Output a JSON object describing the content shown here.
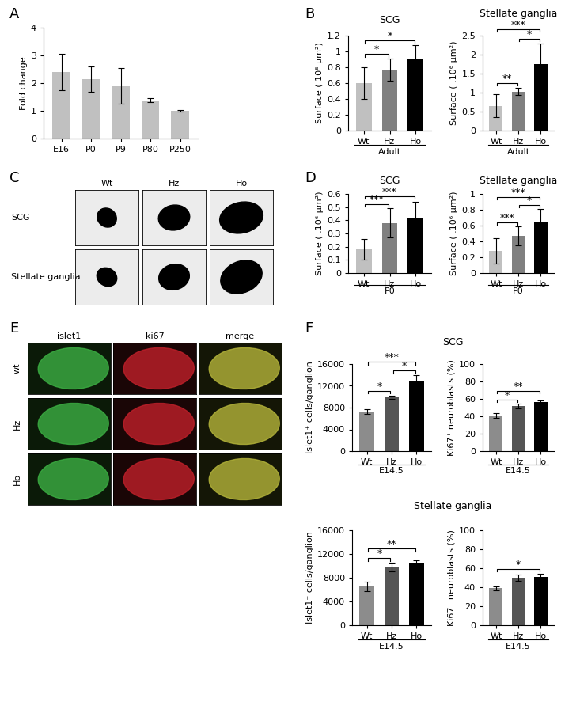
{
  "panel_labels": [
    "A",
    "B",
    "C",
    "D",
    "E",
    "F"
  ],
  "chart_data": [
    {
      "type": "bar",
      "ylabel": "Fold change",
      "categories": [
        "E16",
        "P0",
        "P9",
        "P80",
        "P250"
      ],
      "values": [
        2.4,
        2.15,
        1.9,
        1.38,
        1.0
      ],
      "errors": [
        0.65,
        0.45,
        0.65,
        0.07,
        0.04
      ],
      "color": "#c0c0c0",
      "ylim": [
        0,
        4
      ],
      "yticks": [
        0,
        1,
        2,
        3,
        4
      ]
    },
    {
      "type": "bar",
      "title": "SCG",
      "xlabel": "Adult",
      "ylabel": "Surface ( 10⁶ µm²)",
      "categories": [
        "Wt",
        "Hz",
        "Ho"
      ],
      "values": [
        0.6,
        0.77,
        0.91
      ],
      "errors": [
        0.2,
        0.14,
        0.17
      ],
      "colors": [
        "#c0c0c0",
        "#808080",
        "#000000"
      ],
      "ylim": [
        0,
        1.2
      ],
      "yticks": [
        0,
        0.2,
        0.4,
        0.6,
        0.8,
        1,
        1.2
      ],
      "significance": [
        {
          "pair": [
            0,
            1
          ],
          "text": "*"
        },
        {
          "pair": [
            0,
            2
          ],
          "text": "*"
        }
      ]
    },
    {
      "type": "bar",
      "title": "Stellate ganglia",
      "xlabel": "Adult",
      "ylabel": "Surface ( .10⁶ µm²)",
      "categories": [
        "Wt",
        "Hz",
        "Ho"
      ],
      "values": [
        0.65,
        1.03,
        1.75
      ],
      "errors": [
        0.3,
        0.1,
        0.55
      ],
      "colors": [
        "#c0c0c0",
        "#808080",
        "#000000"
      ],
      "ylim": [
        0,
        2.5
      ],
      "yticks": [
        0,
        0.5,
        1,
        1.5,
        2,
        2.5
      ],
      "significance": [
        {
          "pair": [
            0,
            1
          ],
          "text": "**"
        },
        {
          "pair": [
            1,
            2
          ],
          "text": "*"
        },
        {
          "pair": [
            0,
            2
          ],
          "text": "***"
        }
      ]
    },
    {
      "type": "bar",
      "title": "SCG",
      "xlabel": "P0",
      "ylabel": "Surface ( .10⁶ µm²)",
      "categories": [
        "Wt",
        "Hz",
        "Ho"
      ],
      "values": [
        0.18,
        0.38,
        0.42
      ],
      "errors": [
        0.08,
        0.11,
        0.12
      ],
      "colors": [
        "#c0c0c0",
        "#808080",
        "#000000"
      ],
      "ylim": [
        0,
        0.6
      ],
      "yticks": [
        0,
        0.1,
        0.2,
        0.3,
        0.4,
        0.5,
        0.6
      ],
      "significance": [
        {
          "pair": [
            0,
            1
          ],
          "text": "***"
        },
        {
          "pair": [
            0,
            2
          ],
          "text": "***"
        }
      ]
    },
    {
      "type": "bar",
      "title": "Stellate ganglia",
      "xlabel": "P0",
      "ylabel": "Surface ( .10⁶ µm²)",
      "categories": [
        "Wt",
        "Hz",
        "Ho"
      ],
      "values": [
        0.28,
        0.47,
        0.65
      ],
      "errors": [
        0.16,
        0.12,
        0.16
      ],
      "colors": [
        "#c0c0c0",
        "#808080",
        "#000000"
      ],
      "ylim": [
        0,
        1
      ],
      "yticks": [
        0,
        0.2,
        0.4,
        0.6,
        0.8,
        1
      ],
      "significance": [
        {
          "pair": [
            0,
            1
          ],
          "text": "***"
        },
        {
          "pair": [
            1,
            2
          ],
          "text": "*"
        },
        {
          "pair": [
            0,
            2
          ],
          "text": "***"
        }
      ]
    },
    {
      "type": "bar",
      "xlabel": "E14.5",
      "ylabel": "Islet1⁺ cells/ganglion",
      "categories": [
        "Wt",
        "Hz",
        "Ho"
      ],
      "values": [
        7300,
        9900,
        13000
      ],
      "errors": [
        400,
        350,
        1000
      ],
      "colors": [
        "#8c8c8c",
        "#555555",
        "#000000"
      ],
      "ylim": [
        0,
        16000
      ],
      "yticks": [
        0,
        4000,
        8000,
        12000,
        16000
      ],
      "significance": [
        {
          "pair": [
            0,
            1
          ],
          "text": "*"
        },
        {
          "pair": [
            1,
            2
          ],
          "text": "*"
        },
        {
          "pair": [
            0,
            2
          ],
          "text": "***"
        }
      ]
    },
    {
      "type": "bar",
      "xlabel": "E14.5",
      "ylabel": "Ki67⁺ neuroblasts (%)",
      "categories": [
        "Wt",
        "Hz",
        "Ho"
      ],
      "values": [
        41,
        52,
        56
      ],
      "errors": [
        2.5,
        2.5,
        2
      ],
      "colors": [
        "#8c8c8c",
        "#555555",
        "#000000"
      ],
      "ylim": [
        0,
        100
      ],
      "yticks": [
        0,
        20,
        40,
        60,
        80,
        100
      ],
      "significance": [
        {
          "pair": [
            0,
            1
          ],
          "text": "*"
        },
        {
          "pair": [
            0,
            2
          ],
          "text": "**"
        }
      ]
    },
    {
      "type": "bar",
      "xlabel": "E14.5",
      "ylabel": "Islet1⁺ cells/ganglion",
      "categories": [
        "Wt",
        "Hz",
        "Ho"
      ],
      "values": [
        6600,
        9800,
        10600
      ],
      "errors": [
        800,
        700,
        400
      ],
      "colors": [
        "#8c8c8c",
        "#555555",
        "#000000"
      ],
      "ylim": [
        0,
        16000
      ],
      "yticks": [
        0,
        4000,
        8000,
        12000,
        16000
      ],
      "significance": [
        {
          "pair": [
            0,
            1
          ],
          "text": "*"
        },
        {
          "pair": [
            0,
            2
          ],
          "text": "**"
        }
      ]
    },
    {
      "type": "bar",
      "xlabel": "E14.5",
      "ylabel": "Ki67⁺ neuroblasts (%)",
      "categories": [
        "Wt",
        "Hz",
        "Ho"
      ],
      "values": [
        39,
        50,
        51
      ],
      "errors": [
        2,
        3.5,
        3.5
      ],
      "colors": [
        "#8c8c8c",
        "#555555",
        "#000000"
      ],
      "ylim": [
        0,
        100
      ],
      "yticks": [
        0,
        20,
        40,
        60,
        80,
        100
      ],
      "significance": [
        {
          "pair": [
            0,
            2
          ],
          "text": "*"
        }
      ]
    }
  ],
  "group_titles": [
    "SCG",
    "Stellate ganglia"
  ],
  "image_panels": [
    {
      "columns": [
        "Wt",
        "Hz",
        "Ho"
      ],
      "rows": [
        "SCG",
        "Stellate ganglia"
      ]
    },
    {
      "columns": [
        "islet1",
        "ki67",
        "merge"
      ],
      "rows": [
        "wt",
        "Hz",
        "Ho"
      ]
    }
  ]
}
